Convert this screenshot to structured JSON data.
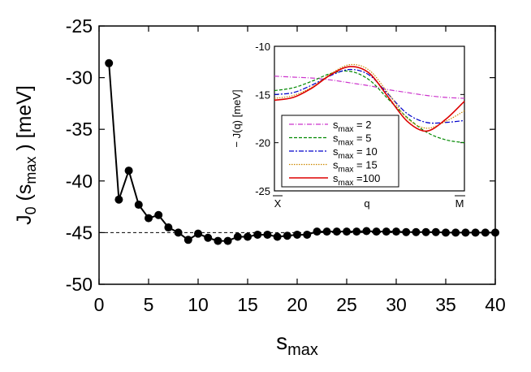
{
  "chart_data": [
    {
      "type": "line",
      "xlabel": "s",
      "xlabel_sub": "max",
      "ylabel_main": "J",
      "ylabel_sub0": "0",
      "ylabel_open": " (s",
      "ylabel_sub1": "max",
      "ylabel_close": " ) [meV]",
      "xlim": [
        0,
        40
      ],
      "ylim": [
        -50,
        -25
      ],
      "xticks": [
        0,
        5,
        10,
        15,
        20,
        25,
        30,
        35,
        40
      ],
      "yticks": [
        -50,
        -45,
        -40,
        -35,
        -30,
        -25
      ],
      "reference_line": -45,
      "series": [
        {
          "x": [
            1,
            2,
            3,
            4,
            5,
            6,
            7,
            8,
            9,
            10,
            11,
            12,
            13,
            14,
            15,
            16,
            17,
            18,
            19,
            20,
            21,
            22,
            23,
            24,
            25,
            26,
            27,
            28,
            29,
            30,
            31,
            32,
            33,
            34,
            35,
            36,
            37,
            38,
            39,
            40
          ],
          "values": [
            -28.6,
            -41.8,
            -39.0,
            -42.3,
            -43.6,
            -43.3,
            -44.5,
            -45.0,
            -45.7,
            -45.1,
            -45.5,
            -45.8,
            -45.8,
            -45.4,
            -45.4,
            -45.2,
            -45.2,
            -45.4,
            -45.3,
            -45.2,
            -45.2,
            -44.9,
            -44.9,
            -44.9,
            -44.9,
            -44.9,
            -44.85,
            -44.9,
            -44.9,
            -44.9,
            -44.95,
            -44.95,
            -44.95,
            -44.95,
            -45.0,
            -45.0,
            -45.0,
            -45.0,
            -45.0,
            -45.0
          ]
        }
      ]
    },
    {
      "type": "line",
      "ylabel": "− J(q) [meV]",
      "xlabel": "q",
      "x_endpoints": [
        "X",
        "M"
      ],
      "ylim": [
        -25,
        -10
      ],
      "yticks": [
        -25,
        -20,
        -15,
        -10
      ],
      "legend_position": "bottom-left",
      "series": [
        {
          "name_main": "s",
          "name_sub": "max",
          "name_value": " =    2",
          "color": "#cc33cc",
          "x": [
            0,
            0.1,
            0.2,
            0.3,
            0.4,
            0.5,
            0.6,
            0.7,
            0.8,
            0.9,
            1.0
          ],
          "values": [
            -13.1,
            -13.2,
            -13.3,
            -13.5,
            -13.8,
            -14.1,
            -14.5,
            -14.8,
            -15.1,
            -15.3,
            -15.4
          ]
        },
        {
          "name_main": "s",
          "name_sub": "max",
          "name_value": " =    5",
          "color": "#008800",
          "x": [
            0,
            0.1,
            0.2,
            0.3,
            0.4,
            0.5,
            0.6,
            0.7,
            0.8,
            0.9,
            1.0
          ],
          "values": [
            -14.6,
            -14.3,
            -13.6,
            -12.8,
            -12.6,
            -13.5,
            -15.5,
            -17.4,
            -18.9,
            -19.7,
            -20.0
          ]
        },
        {
          "name_main": "s",
          "name_sub": "max",
          "name_value": " =  10",
          "color": "#0000cc",
          "x": [
            0,
            0.1,
            0.2,
            0.3,
            0.4,
            0.5,
            0.6,
            0.7,
            0.8,
            0.9,
            1.0
          ],
          "values": [
            -15.0,
            -14.8,
            -14.0,
            -13.0,
            -12.4,
            -13.0,
            -15.0,
            -17.0,
            -17.9,
            -17.9,
            -17.7
          ]
        },
        {
          "name_main": "s",
          "name_sub": "max",
          "name_value": " =  15",
          "color": "#cc8800",
          "x": [
            0,
            0.1,
            0.2,
            0.3,
            0.4,
            0.5,
            0.6,
            0.7,
            0.8,
            0.9,
            1.0
          ],
          "values": [
            -15.4,
            -15.1,
            -14.2,
            -12.8,
            -11.9,
            -12.5,
            -14.9,
            -17.5,
            -18.5,
            -17.8,
            -16.7
          ]
        },
        {
          "name_main": "s",
          "name_sub": "max",
          "name_value": " =100",
          "color": "#dd0000",
          "x": [
            0,
            0.1,
            0.2,
            0.3,
            0.4,
            0.5,
            0.6,
            0.7,
            0.8,
            0.9,
            1.0
          ],
          "values": [
            -15.6,
            -15.3,
            -14.3,
            -12.9,
            -12.1,
            -12.8,
            -15.3,
            -17.8,
            -18.8,
            -17.6,
            -15.7
          ]
        }
      ]
    }
  ]
}
